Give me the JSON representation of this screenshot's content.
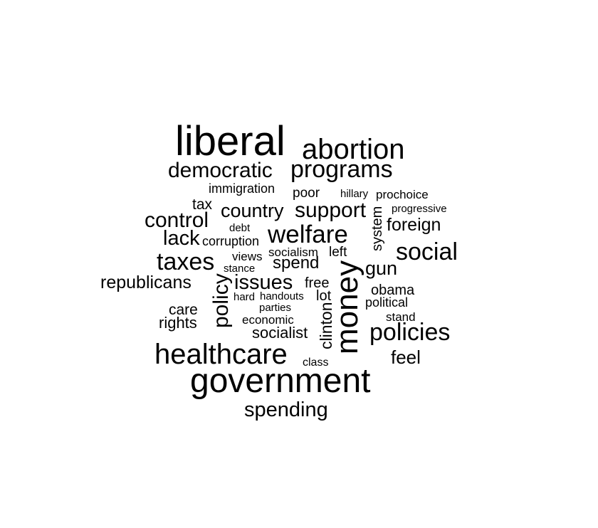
{
  "word_cloud": {
    "text_color": "#000000",
    "background_color": "#ffffff",
    "words": [
      {
        "text": "liberal",
        "rotated": false
      },
      {
        "text": "abortion",
        "rotated": false
      },
      {
        "text": "democratic",
        "rotated": false
      },
      {
        "text": "programs",
        "rotated": false
      },
      {
        "text": "immigration",
        "rotated": false
      },
      {
        "text": "poor",
        "rotated": false
      },
      {
        "text": "hillary",
        "rotated": false
      },
      {
        "text": "prochoice",
        "rotated": false
      },
      {
        "text": "tax",
        "rotated": false
      },
      {
        "text": "country",
        "rotated": false
      },
      {
        "text": "support",
        "rotated": false
      },
      {
        "text": "progressive",
        "rotated": false
      },
      {
        "text": "control",
        "rotated": false
      },
      {
        "text": "debt",
        "rotated": false
      },
      {
        "text": "foreign",
        "rotated": false
      },
      {
        "text": "lack",
        "rotated": false
      },
      {
        "text": "corruption",
        "rotated": false
      },
      {
        "text": "welfare",
        "rotated": false
      },
      {
        "text": "system",
        "rotated": true
      },
      {
        "text": "social",
        "rotated": false
      },
      {
        "text": "socialism",
        "rotated": false
      },
      {
        "text": "left",
        "rotated": false
      },
      {
        "text": "taxes",
        "rotated": false
      },
      {
        "text": "views",
        "rotated": false
      },
      {
        "text": "stance",
        "rotated": false
      },
      {
        "text": "spend",
        "rotated": false
      },
      {
        "text": "gun",
        "rotated": false
      },
      {
        "text": "money",
        "rotated": true
      },
      {
        "text": "republicans",
        "rotated": false
      },
      {
        "text": "issues",
        "rotated": false
      },
      {
        "text": "free",
        "rotated": false
      },
      {
        "text": "policy",
        "rotated": true
      },
      {
        "text": "obama",
        "rotated": false
      },
      {
        "text": "hard",
        "rotated": false
      },
      {
        "text": "handouts",
        "rotated": false
      },
      {
        "text": "lot",
        "rotated": false
      },
      {
        "text": "political",
        "rotated": false
      },
      {
        "text": "care",
        "rotated": false
      },
      {
        "text": "parties",
        "rotated": false
      },
      {
        "text": "clinton",
        "rotated": true
      },
      {
        "text": "stand",
        "rotated": false
      },
      {
        "text": "rights",
        "rotated": false
      },
      {
        "text": "economic",
        "rotated": false
      },
      {
        "text": "policies",
        "rotated": false
      },
      {
        "text": "socialist",
        "rotated": false
      },
      {
        "text": "healthcare",
        "rotated": false
      },
      {
        "text": "feel",
        "rotated": false
      },
      {
        "text": "class",
        "rotated": false
      },
      {
        "text": "government",
        "rotated": false
      },
      {
        "text": "spending",
        "rotated": false
      }
    ]
  }
}
